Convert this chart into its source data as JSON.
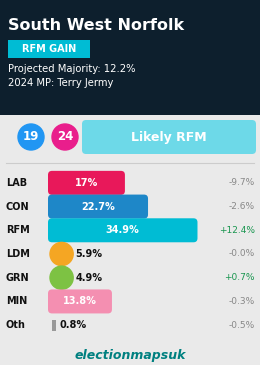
{
  "title": "South West Norfolk",
  "badge_text": "RFM GAIN",
  "badge_color": "#00bcd4",
  "badge_text_color": "#ffffff",
  "projected_majority": "Projected Majority: 12.2%",
  "mp_2024": "2024 MP: Terry Jermy",
  "header_bg": "#0d1f2d",
  "body_bg": "#eaeaea",
  "circle1_val": "19",
  "circle1_color": "#2196f3",
  "circle2_val": "24",
  "circle2_color": "#e91e8c",
  "likely_label": "Likely RFM",
  "likely_color": "#6dd9e8",
  "parties": [
    "LAB",
    "CON",
    "RFM",
    "LDM",
    "GRN",
    "MIN",
    "Oth"
  ],
  "values": [
    17.0,
    22.7,
    34.9,
    5.9,
    4.9,
    13.8,
    0.8
  ],
  "value_labels": [
    "17%",
    "22.7%",
    "34.9%",
    "5.9%",
    "4.9%",
    "13.8%",
    "0.8%"
  ],
  "changes": [
    "-9.7%",
    "-2.6%",
    "+12.4%",
    "-0.0%",
    "+0.7%",
    "-0.3%",
    "-0.5%"
  ],
  "bar_colors": [
    "#e8185a",
    "#1e87c8",
    "#00bcd4",
    "#f5a623",
    "#7dc243",
    "#f48fb1",
    "#999999"
  ],
  "bar_max": 37.0,
  "footer_text": "electionmapsuk",
  "footer_color": "#008080"
}
